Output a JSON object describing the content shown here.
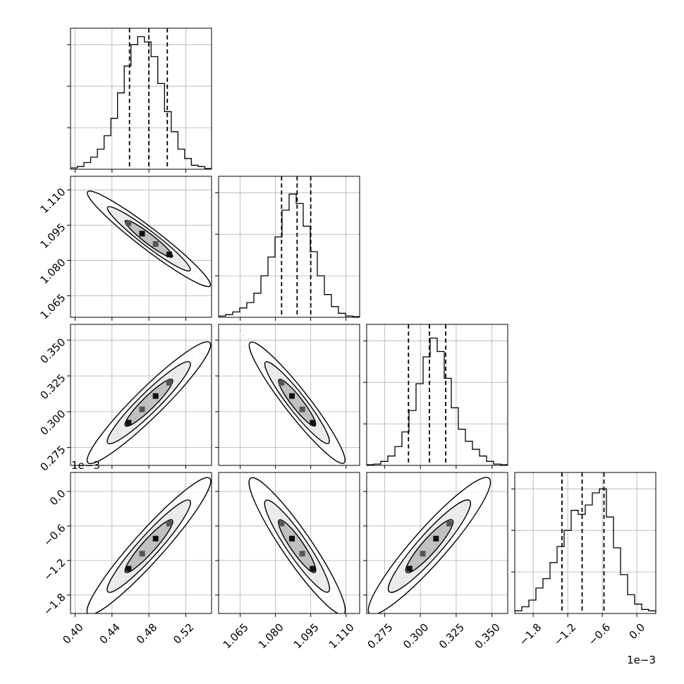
{
  "chart_data": {
    "type": "corner",
    "parameters": [
      {
        "ticks": [
          "0.40",
          "0.44",
          "0.48",
          "0.52"
        ],
        "tick_values": [
          0.4,
          0.44,
          0.48,
          0.52
        ],
        "range": [
          0.395,
          0.548
        ],
        "multiplier": ""
      },
      {
        "ticks": [
          "1.065",
          "1.080",
          "1.095",
          "1.110"
        ],
        "tick_values": [
          1.065,
          1.08,
          1.095,
          1.11
        ],
        "range": [
          1.0558,
          1.1158
        ],
        "multiplier": ""
      },
      {
        "ticks": [
          "0.275",
          "0.300",
          "0.325",
          "0.350"
        ],
        "tick_values": [
          0.275,
          0.3,
          0.325,
          0.35
        ],
        "range": [
          0.2625,
          0.361
        ],
        "multiplier": ""
      },
      {
        "ticks": [
          "−1.8",
          "−1.2",
          "−0.6",
          "0.0"
        ],
        "tick_values": [
          -1.8,
          -1.2,
          -0.6,
          0.0
        ],
        "range": [
          -2.12,
          0.33
        ],
        "multiplier": "1e−3"
      }
    ],
    "quantiles": [
      [
        0.459,
        0.48,
        0.5
      ],
      [
        1.0826,
        1.0892,
        1.095
      ],
      [
        0.2917,
        0.3063,
        0.3177
      ],
      [
        -1.3,
        -0.95,
        -0.57
      ]
    ],
    "histograms": [
      {
        "ymax": 1.0,
        "values": [
          0.01,
          0.02,
          0.05,
          0.09,
          0.15,
          0.25,
          0.38,
          0.57,
          0.77,
          0.93,
          0.99,
          0.95,
          0.84,
          0.64,
          0.43,
          0.28,
          0.15,
          0.08,
          0.03,
          0.02,
          0.005
        ]
      },
      {
        "ymax": 1.0,
        "values": [
          0.01,
          0.02,
          0.04,
          0.07,
          0.11,
          0.18,
          0.31,
          0.45,
          0.6,
          0.8,
          0.92,
          0.85,
          0.68,
          0.49,
          0.31,
          0.17,
          0.08,
          0.03,
          0.01,
          0.005
        ]
      },
      {
        "ymax": 1.0,
        "values": [
          0.005,
          0.01,
          0.03,
          0.07,
          0.14,
          0.25,
          0.41,
          0.61,
          0.81,
          0.95,
          0.85,
          0.65,
          0.43,
          0.27,
          0.18,
          0.12,
          0.07,
          0.03,
          0.01,
          0.005
        ]
      },
      {
        "ymax": 1.0,
        "values": [
          0.02,
          0.05,
          0.1,
          0.19,
          0.26,
          0.38,
          0.5,
          0.62,
          0.77,
          0.74,
          0.81,
          0.9,
          0.93,
          0.72,
          0.49,
          0.29,
          0.14,
          0.07,
          0.03,
          0.02
        ]
      }
    ],
    "correlations": [
      [
        1,
        -0.98,
        0.97,
        0.97
      ],
      [
        -0.98,
        1,
        -0.97,
        -0.96
      ],
      [
        0.97,
        -0.97,
        1,
        0.96
      ],
      [
        0.97,
        -0.96,
        0.96,
        1
      ]
    ],
    "contour_levels": [
      0.39,
      0.86,
      0.99
    ],
    "grid": true,
    "histogram_ticks": [
      "",
      "",
      "",
      ""
    ],
    "axis_multipliers": {
      "x4": "1e−3",
      "y4": "1e−3"
    },
    "title": "",
    "xlabel": "",
    "ylabel": ""
  }
}
